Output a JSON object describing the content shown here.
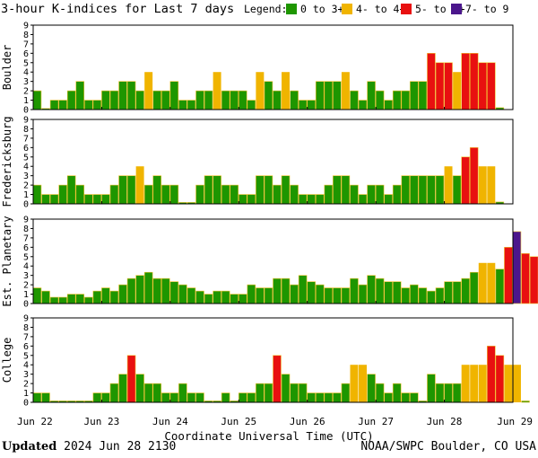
{
  "title": "3-hour K-indices for Last 7 days",
  "legend": {
    "label": "Legend:",
    "items": [
      {
        "text": "0 to 3+",
        "color": "#1e9600"
      },
      {
        "text": "4- to 4+",
        "color": "#f0b400"
      },
      {
        "text": "5- to 6+",
        "color": "#e81010"
      },
      {
        "text": "7- to 9",
        "color": "#4b168c"
      }
    ]
  },
  "xlabel": "Coordinate Universal Time (UTC)",
  "footer": {
    "updated_label": "Updated",
    "updated_value": "2024 Jun 28 2130",
    "source": "NOAA/SWPC Boulder, CO USA"
  },
  "chart_data": [
    {
      "type": "bar",
      "name": "Boulder",
      "ylim": [
        0,
        9
      ],
      "yticks": [
        "0",
        "1",
        "2",
        "3",
        "4",
        "5",
        "6",
        "7",
        "8",
        "9"
      ],
      "xticks": [
        "Jun 22",
        "Jun 23",
        "Jun 24",
        "Jun 25",
        "Jun 26",
        "Jun 27",
        "Jun 28",
        "Jun 29"
      ],
      "values": [
        2,
        0,
        1,
        1,
        2,
        3,
        1,
        1,
        2,
        2,
        3,
        3,
        2,
        4,
        2,
        2,
        3,
        1,
        1,
        2,
        2,
        4,
        2,
        2,
        2,
        1,
        4,
        3,
        2,
        4,
        2,
        1,
        1,
        3,
        3,
        3,
        4,
        2,
        1,
        3,
        2,
        1,
        2,
        2,
        3,
        3,
        6,
        5,
        5,
        4,
        6,
        6,
        5,
        5,
        0.2
      ]
    },
    {
      "type": "bar",
      "name": "Fredericksburg",
      "ylim": [
        0,
        9
      ],
      "yticks": [
        "0",
        "1",
        "2",
        "3",
        "4",
        "5",
        "6",
        "7",
        "8",
        "9"
      ],
      "xticks": [
        "Jun 22",
        "Jun 23",
        "Jun 24",
        "Jun 25",
        "Jun 26",
        "Jun 27",
        "Jun 28",
        "Jun 29"
      ],
      "values": [
        2,
        1,
        1,
        2,
        3,
        2,
        1,
        1,
        1,
        2,
        3,
        3,
        4,
        2,
        3,
        2,
        2,
        0.15,
        0.15,
        2,
        3,
        3,
        2,
        2,
        1,
        1,
        3,
        3,
        2,
        3,
        2,
        1,
        1,
        1,
        2,
        3,
        3,
        2,
        1,
        2,
        2,
        1,
        2,
        3,
        3,
        3,
        3,
        3,
        4,
        3,
        5,
        6,
        4,
        4,
        0.2
      ]
    },
    {
      "type": "bar",
      "name": "Est. Planetary",
      "ylim": [
        0,
        9
      ],
      "yticks": [
        "0",
        "1",
        "2",
        "3",
        "4",
        "5",
        "6",
        "7",
        "8",
        "9"
      ],
      "xticks": [
        "Jun 22",
        "Jun 23",
        "Jun 24",
        "Jun 25",
        "Jun 26",
        "Jun 27",
        "Jun 28",
        "Jun 29"
      ],
      "values": [
        1.67,
        1.33,
        0.67,
        0.67,
        1.0,
        1.0,
        0.67,
        1.33,
        1.67,
        1.33,
        2.0,
        2.67,
        3.0,
        3.33,
        2.67,
        2.67,
        2.33,
        2.0,
        1.67,
        1.33,
        1.0,
        1.33,
        1.33,
        1.0,
        1.0,
        2.0,
        1.67,
        1.67,
        2.67,
        2.67,
        2.0,
        3.0,
        2.33,
        2.0,
        1.67,
        1.67,
        1.67,
        2.67,
        2.0,
        3.0,
        2.67,
        2.33,
        2.33,
        1.67,
        2.0,
        1.67,
        1.33,
        1.67,
        2.33,
        2.33,
        2.67,
        3.33,
        4.33,
        4.33,
        3.67,
        6.0,
        7.67,
        5.33,
        5.0
      ]
    },
    {
      "type": "bar",
      "name": "College",
      "ylim": [
        0,
        9
      ],
      "yticks": [
        "0",
        "1",
        "2",
        "3",
        "4",
        "5",
        "6",
        "7",
        "8",
        "9"
      ],
      "xticks": [
        "Jun 22",
        "Jun 23",
        "Jun 24",
        "Jun 25",
        "Jun 26",
        "Jun 27",
        "Jun 28",
        "Jun 29"
      ],
      "values": [
        1,
        1,
        0.15,
        0.15,
        0.15,
        0.15,
        0.15,
        1,
        1,
        2,
        3,
        5,
        3,
        2,
        2,
        1,
        1,
        2,
        1,
        1,
        0.15,
        0.15,
        1,
        0.15,
        1,
        1,
        2,
        2,
        5,
        3,
        2,
        2,
        1,
        1,
        1,
        1,
        2,
        4,
        4,
        3,
        2,
        1,
        2,
        1,
        1,
        0.15,
        3,
        2,
        2,
        2,
        4,
        4,
        4,
        6,
        5,
        4,
        4,
        0.15
      ]
    }
  ]
}
